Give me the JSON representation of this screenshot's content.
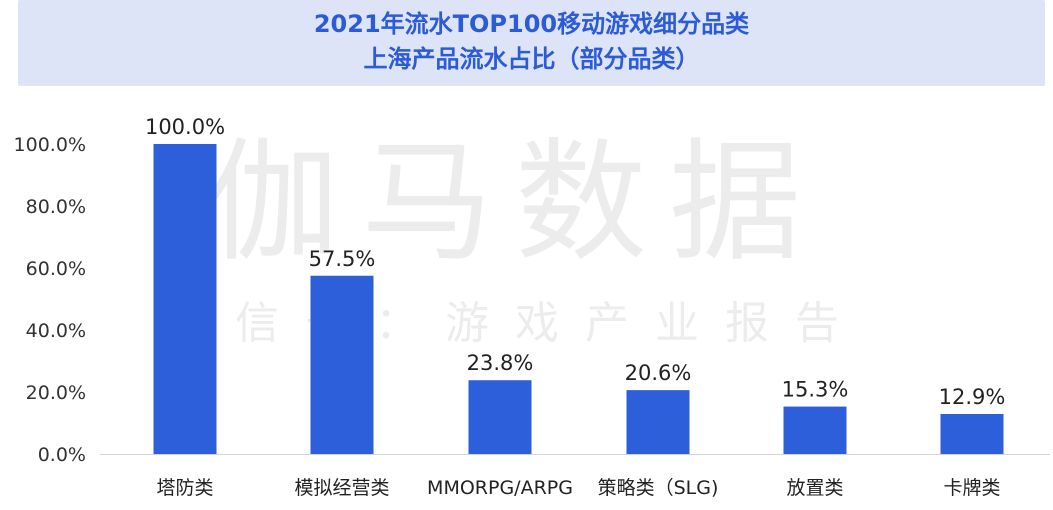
{
  "header": {
    "title_line1": "2021年流水TOP100移动游戏细分品类",
    "title_line2": "上海产品流水占比（部分品类）"
  },
  "watermark": {
    "main": "伽马数据",
    "sub": "微信号：游戏产业报告"
  },
  "colors": {
    "bar": "#2c5fd9",
    "title": "#2b5bd6",
    "title_bg": "#dde4f7"
  },
  "chart_data": {
    "type": "bar",
    "categories": [
      "塔防类",
      "模拟经营类",
      "MMORPG/ARPG",
      "策略类（SLG)",
      "放置类",
      "卡牌类"
    ],
    "values": [
      100.0,
      57.5,
      23.8,
      20.6,
      15.3,
      12.9
    ],
    "value_labels": [
      "100.0%",
      "57.5%",
      "23.8%",
      "20.6%",
      "15.3%",
      "12.9%"
    ],
    "y_ticks": [
      "0.0%",
      "20.0%",
      "40.0%",
      "60.0%",
      "80.0%",
      "100.0%"
    ],
    "y_tick_values": [
      0,
      20,
      40,
      60,
      80,
      100
    ],
    "ylim": [
      0,
      100
    ],
    "grid": false,
    "legend": "none"
  }
}
